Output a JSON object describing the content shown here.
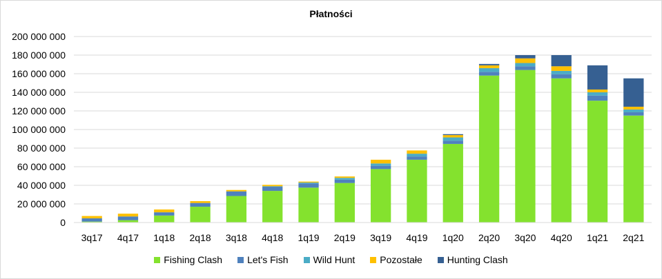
{
  "chart_data": {
    "type": "bar",
    "stacked": true,
    "title": "Płatności",
    "xlabel": "",
    "ylabel": "",
    "ylim": [
      0,
      200000000
    ],
    "yticks": [
      0,
      20000000,
      40000000,
      60000000,
      80000000,
      100000000,
      120000000,
      140000000,
      160000000,
      180000000,
      200000000
    ],
    "ytick_labels": [
      "0",
      "20 000 000",
      "40 000 000",
      "60 000 000",
      "80 000 000",
      "100 000 000",
      "120 000 000",
      "140 000 000",
      "160 000 000",
      "180 000 000",
      "200 000 000"
    ],
    "grid": true,
    "legend_position": "bottom",
    "categories": [
      "3q17",
      "4q17",
      "1q18",
      "2q18",
      "3q18",
      "4q18",
      "1q19",
      "2q19",
      "3q19",
      "4q19",
      "1q20",
      "2q20",
      "3q20",
      "4q20",
      "1q21",
      "2q21"
    ],
    "series": [
      {
        "name": "Fishing Clash",
        "color": "#84E22E",
        "values": [
          1000000,
          2500000,
          7500000,
          17000000,
          28500000,
          34000000,
          37500000,
          42500000,
          57500000,
          67500000,
          84500000,
          158000000,
          164000000,
          155000000,
          131000000,
          115000000
        ]
      },
      {
        "name": "Let's Fish",
        "color": "#4F81BD",
        "values": [
          3500000,
          4000000,
          3500000,
          4000000,
          5000000,
          4500000,
          4500000,
          3500000,
          3500000,
          3500000,
          3500000,
          4000000,
          4000000,
          4500000,
          5500000,
          3500000
        ]
      },
      {
        "name": "Wild Hunt",
        "color": "#4BACC6",
        "values": [
          0,
          0,
          0,
          0,
          0,
          500000,
          1000000,
          2000000,
          2500000,
          3000000,
          3500000,
          4000000,
          3500000,
          3500000,
          3500000,
          3000000
        ]
      },
      {
        "name": "Pozostałe",
        "color": "#FFC000",
        "values": [
          2500000,
          3000000,
          3000000,
          2000000,
          1500000,
          1500000,
          1000000,
          1500000,
          4000000,
          3500000,
          2500000,
          3000000,
          5000000,
          5000000,
          3000000,
          3000000
        ]
      },
      {
        "name": "Hunting Clash",
        "color": "#366092",
        "values": [
          0,
          0,
          0,
          0,
          0,
          0,
          0,
          0,
          0,
          0,
          1000000,
          1500000,
          3500000,
          12000000,
          26000000,
          30500000
        ]
      }
    ]
  }
}
